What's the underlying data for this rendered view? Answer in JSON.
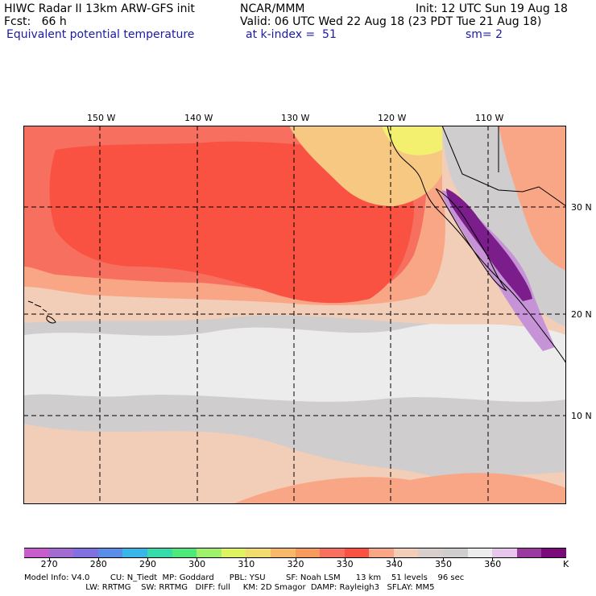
{
  "header": {
    "model": "HIWC Radar II 13km ARW-GFS init",
    "org": "NCAR/MMM",
    "init": "Init: 12 UTC Sun 19 Aug 18",
    "fcst": "Fcst:   66 h",
    "valid": "Valid: 06 UTC Wed 22 Aug 18 (23 PDT Tue 21 Aug 18)",
    "field": "Equivalent potential temperature",
    "level": "at k-index =  51",
    "smooth": "sm= 2"
  },
  "map": {
    "lon_labels": [
      "150 W",
      "140 W",
      "130 W",
      "120 W",
      "110 W"
    ],
    "lat_labels": [
      "30 N",
      "20 N",
      "10 N"
    ],
    "colors": {
      "ocean_warm": "#f7705f",
      "ocean_hot": "#f95243",
      "peach": "#f9a687",
      "tan": "#f2cdb8",
      "gray": "#cfcdcd",
      "light": "#ececec",
      "orange": "#f7c882",
      "yellow": "#f2f06e",
      "purple": "#7b1e8b",
      "lavender": "#c693d7",
      "land_line": "#000000"
    }
  },
  "colorbar": {
    "labels": [
      "270",
      "280",
      "290",
      "300",
      "310",
      "320",
      "330",
      "340",
      "350",
      "360"
    ],
    "unit": "K",
    "colors": [
      "#c75ccb",
      "#a26bd1",
      "#8070e0",
      "#5a8de8",
      "#3ab5e8",
      "#35dba8",
      "#4fe87a",
      "#9ff06a",
      "#dff261",
      "#f3dc6f",
      "#f8b86a",
      "#f79a5e",
      "#f7705f",
      "#f95243",
      "#f9a687",
      "#f2cdb8",
      "#d8cfcc",
      "#cfcdcd",
      "#ececec",
      "#e6c6ea",
      "#9a3aa0",
      "#7a0a7a"
    ]
  },
  "footer": {
    "line1": "Model Info: V4.0        CU: N_Tiedt  MP: Goddard      PBL: YSU        SF: Noah LSM      13 km    51 levels    96 sec",
    "line2": "                        LW: RRTMG    SW: RRTMG   DIFF: full     KM: 2D Smagor  DAMP: Rayleigh3   SFLAY: MM5"
  }
}
